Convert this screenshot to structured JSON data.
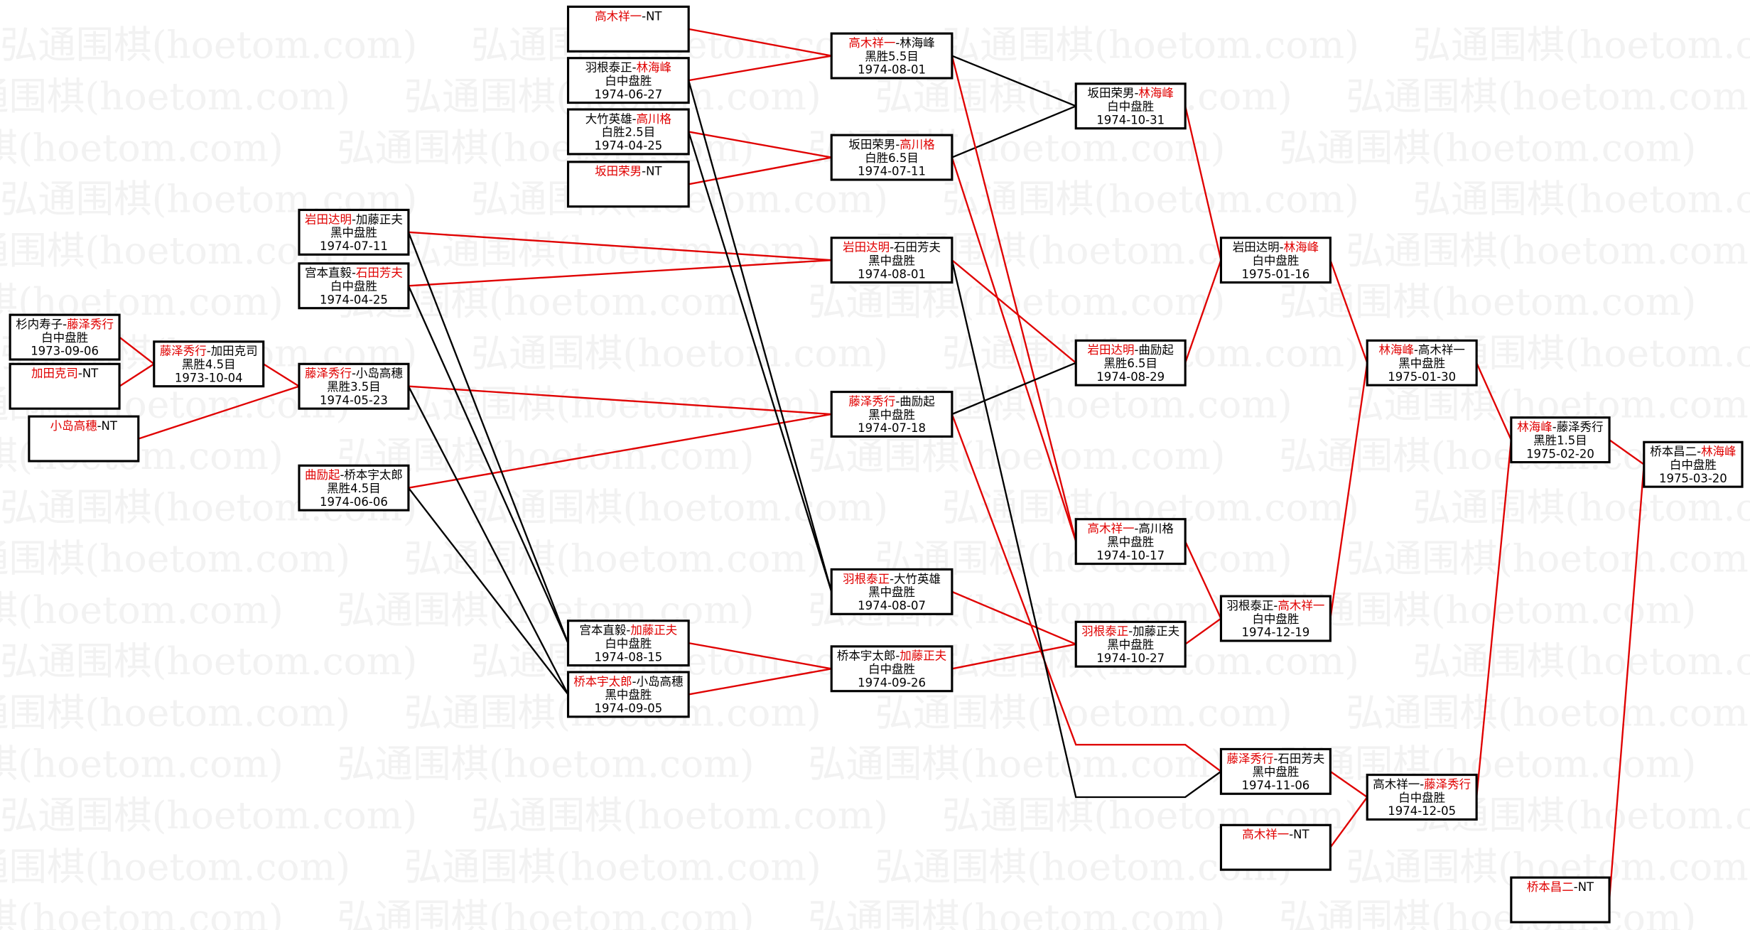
{
  "watermark": "弘通围棋(hoetom.com)",
  "colors": {
    "winner": "#e00000",
    "winner_line": "#e00000",
    "loser_line": "#000000",
    "box_border": "#000000",
    "watermark": "#f2f2f2"
  },
  "separator": "-",
  "games": {
    "A1": {
      "players": [
        {
          "name": "杉内寿子",
          "winner": false
        },
        {
          "name": "藤泽秀行",
          "winner": true
        }
      ],
      "result": "白中盘胜",
      "date": "1973-09-06"
    },
    "A2": {
      "players": [
        {
          "name": "加田克司",
          "winner": true
        },
        {
          "name": "NT",
          "winner": false
        }
      ]
    },
    "A3": {
      "players": [
        {
          "name": "小岛高穗",
          "winner": true
        },
        {
          "name": "NT",
          "winner": false
        }
      ]
    },
    "B1": {
      "players": [
        {
          "name": "藤泽秀行",
          "winner": true
        },
        {
          "name": "加田克司",
          "winner": false
        }
      ],
      "result": "黑胜4.5目",
      "date": "1973-10-04"
    },
    "C1": {
      "players": [
        {
          "name": "岩田达明",
          "winner": true
        },
        {
          "name": "加藤正夫",
          "winner": false
        }
      ],
      "result": "黑中盘胜",
      "date": "1974-07-11"
    },
    "C2": {
      "players": [
        {
          "name": "宫本直毅",
          "winner": false
        },
        {
          "name": "石田芳夫",
          "winner": true
        }
      ],
      "result": "白中盘胜",
      "date": "1974-04-25"
    },
    "C3": {
      "players": [
        {
          "name": "藤泽秀行",
          "winner": true
        },
        {
          "name": "小岛高穗",
          "winner": false
        }
      ],
      "result": "黑胜3.5目",
      "date": "1974-05-23"
    },
    "C4": {
      "players": [
        {
          "name": "曲励起",
          "winner": true
        },
        {
          "name": "桥本宇太郎",
          "winner": false
        }
      ],
      "result": "黑胜4.5目",
      "date": "1974-06-06"
    },
    "D1": {
      "players": [
        {
          "name": "高木祥一",
          "winner": true
        },
        {
          "name": "NT",
          "winner": false
        }
      ]
    },
    "D2": {
      "players": [
        {
          "name": "羽根泰正",
          "winner": false
        },
        {
          "name": "林海峰",
          "winner": true
        }
      ],
      "result": "白中盘胜",
      "date": "1974-06-27"
    },
    "D3": {
      "players": [
        {
          "name": "大竹英雄",
          "winner": false
        },
        {
          "name": "高川格",
          "winner": true
        }
      ],
      "result": "白胜2.5目",
      "date": "1974-04-25"
    },
    "D4": {
      "players": [
        {
          "name": "坂田荣男",
          "winner": true
        },
        {
          "name": "NT",
          "winner": false
        }
      ]
    },
    "D5": {
      "players": [
        {
          "name": "宫本直毅",
          "winner": false
        },
        {
          "name": "加藤正夫",
          "winner": true
        }
      ],
      "result": "白中盘胜",
      "date": "1974-08-15"
    },
    "D6": {
      "players": [
        {
          "name": "桥本宇太郎",
          "winner": true
        },
        {
          "name": "小岛高穗",
          "winner": false
        }
      ],
      "result": "黑中盘胜",
      "date": "1974-09-05"
    },
    "E1": {
      "players": [
        {
          "name": "高木祥一",
          "winner": true
        },
        {
          "name": "林海峰",
          "winner": false
        }
      ],
      "result": "黑胜5.5目",
      "date": "1974-08-01"
    },
    "E2": {
      "players": [
        {
          "name": "坂田荣男",
          "winner": false
        },
        {
          "name": "高川格",
          "winner": true
        }
      ],
      "result": "白胜6.5目",
      "date": "1974-07-11"
    },
    "E3": {
      "players": [
        {
          "name": "岩田达明",
          "winner": true
        },
        {
          "name": "石田芳夫",
          "winner": false
        }
      ],
      "result": "黑中盘胜",
      "date": "1974-08-01"
    },
    "E4": {
      "players": [
        {
          "name": "藤泽秀行",
          "winner": true
        },
        {
          "name": "曲励起",
          "winner": false
        }
      ],
      "result": "黑中盘胜",
      "date": "1974-07-18"
    },
    "E5": {
      "players": [
        {
          "name": "羽根泰正",
          "winner": true
        },
        {
          "name": "大竹英雄",
          "winner": false
        }
      ],
      "result": "黑中盘胜",
      "date": "1974-08-07"
    },
    "E6": {
      "players": [
        {
          "name": "桥本宇太郎",
          "winner": false
        },
        {
          "name": "加藤正夫",
          "winner": true
        }
      ],
      "result": "白中盘胜",
      "date": "1974-09-26"
    },
    "F1": {
      "players": [
        {
          "name": "坂田荣男",
          "winner": false
        },
        {
          "name": "林海峰",
          "winner": true
        }
      ],
      "result": "白中盘胜",
      "date": "1974-10-31"
    },
    "F2": {
      "players": [
        {
          "name": "岩田达明",
          "winner": true
        },
        {
          "name": "曲励起",
          "winner": false
        }
      ],
      "result": "黑胜6.5目",
      "date": "1974-08-29"
    },
    "F3": {
      "players": [
        {
          "name": "高木祥一",
          "winner": true
        },
        {
          "name": "高川格",
          "winner": false
        }
      ],
      "result": "黑中盘胜",
      "date": "1974-10-17"
    },
    "F4": {
      "players": [
        {
          "name": "羽根泰正",
          "winner": true
        },
        {
          "name": "加藤正夫",
          "winner": false
        }
      ],
      "result": "黑中盘胜",
      "date": "1974-10-27"
    },
    "G1": {
      "players": [
        {
          "name": "岩田达明",
          "winner": false
        },
        {
          "name": "林海峰",
          "winner": true
        }
      ],
      "result": "白中盘胜",
      "date": "1975-01-16"
    },
    "G2": {
      "players": [
        {
          "name": "羽根泰正",
          "winner": false
        },
        {
          "name": "高木祥一",
          "winner": true
        }
      ],
      "result": "白中盘胜",
      "date": "1974-12-19"
    },
    "G3": {
      "players": [
        {
          "name": "藤泽秀行",
          "winner": true
        },
        {
          "name": "石田芳夫",
          "winner": false
        }
      ],
      "result": "黑中盘胜",
      "date": "1974-11-06"
    },
    "G4": {
      "players": [
        {
          "name": "高木祥一",
          "winner": true
        },
        {
          "name": "NT",
          "winner": false
        }
      ]
    },
    "H1": {
      "players": [
        {
          "name": "林海峰",
          "winner": true
        },
        {
          "name": "高木祥一",
          "winner": false
        }
      ],
      "result": "黑中盘胜",
      "date": "1975-01-30"
    },
    "H2": {
      "players": [
        {
          "name": "高木祥一",
          "winner": false
        },
        {
          "name": "藤泽秀行",
          "winner": true
        }
      ],
      "result": "白中盘胜",
      "date": "1974-12-05"
    },
    "I1": {
      "players": [
        {
          "name": "林海峰",
          "winner": true
        },
        {
          "name": "藤泽秀行",
          "winner": false
        }
      ],
      "result": "黑胜1.5目",
      "date": "1975-02-20"
    },
    "I2": {
      "players": [
        {
          "name": "桥本昌二",
          "winner": true
        },
        {
          "name": "NT",
          "winner": false
        }
      ]
    },
    "J1": {
      "players": [
        {
          "name": "桥本昌二",
          "winner": false
        },
        {
          "name": "林海峰",
          "winner": true
        }
      ],
      "result": "白中盘胜",
      "date": "1975-03-20"
    }
  }
}
